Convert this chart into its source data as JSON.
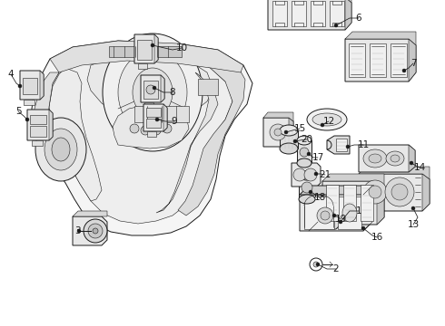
{
  "bg_color": "#ffffff",
  "line_color": "#1a1a1a",
  "fig_width": 4.9,
  "fig_height": 3.6,
  "dpi": 100,
  "label_fs": 7.5,
  "lw_main": 0.7,
  "lw_thin": 0.4,
  "lw_thick": 1.0,
  "gray_fill": "#d8d8d8",
  "white_fill": "#ffffff",
  "mid_gray": "#b0b0b0"
}
